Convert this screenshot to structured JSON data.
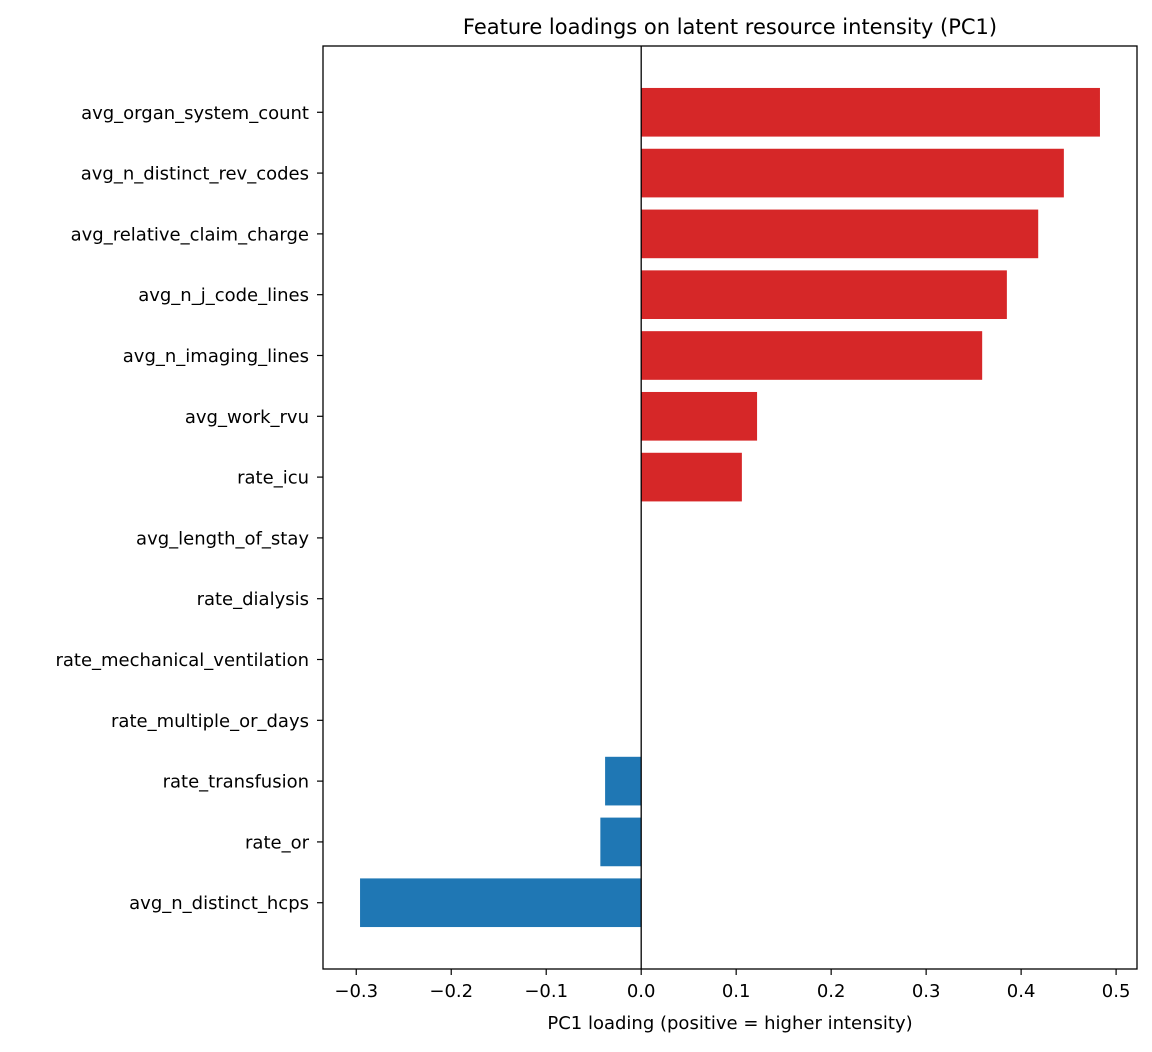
{
  "chart_data": {
    "type": "bar",
    "orientation": "horizontal",
    "title": "Feature loadings on latent resource intensity (PC1)",
    "xlabel": "PC1 loading (positive = higher intensity)",
    "ylabel": "",
    "xlim": [
      -0.335,
      0.522
    ],
    "xticks": [
      -0.3,
      -0.2,
      -0.1,
      0.0,
      0.1,
      0.2,
      0.3,
      0.4,
      0.5
    ],
    "xtick_labels": [
      "−0.3",
      "−0.2",
      "−0.1",
      "0.0",
      "0.1",
      "0.2",
      "0.3",
      "0.4",
      "0.5"
    ],
    "grid": false,
    "zero_line": true,
    "colors": {
      "positive": "#d62728",
      "negative": "#1f77b4"
    },
    "categories": [
      "avg_organ_system_count",
      "avg_n_distinct_rev_codes",
      "avg_relative_claim_charge",
      "avg_n_j_code_lines",
      "avg_n_imaging_lines",
      "avg_work_rvu",
      "rate_icu",
      "avg_length_of_stay",
      "rate_dialysis",
      "rate_mechanical_ventilation",
      "rate_multiple_or_days",
      "rate_transfusion",
      "rate_or",
      "avg_n_distinct_hcps"
    ],
    "values": [
      0.483,
      0.445,
      0.418,
      0.385,
      0.359,
      0.122,
      0.106,
      0.0,
      0.0,
      0.0,
      0.0,
      -0.038,
      -0.043,
      -0.296
    ]
  }
}
